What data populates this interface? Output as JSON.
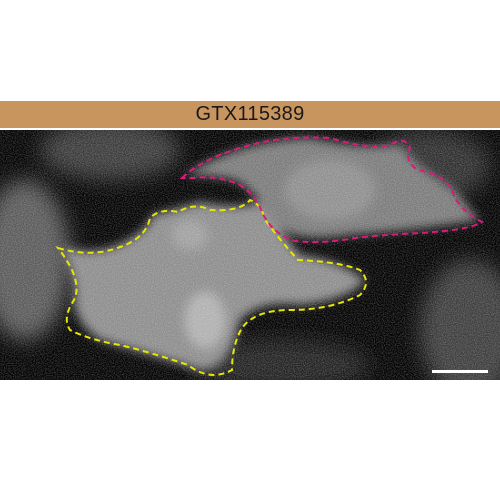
{
  "figure": {
    "antibody_label": "GTX115389",
    "colors": {
      "label_bar": "#c8955f",
      "background": "#000000",
      "cell_outline_1": "#e6e600",
      "cell_outline_2": "#d81b7a",
      "scale_bar": "#ffffff"
    }
  }
}
